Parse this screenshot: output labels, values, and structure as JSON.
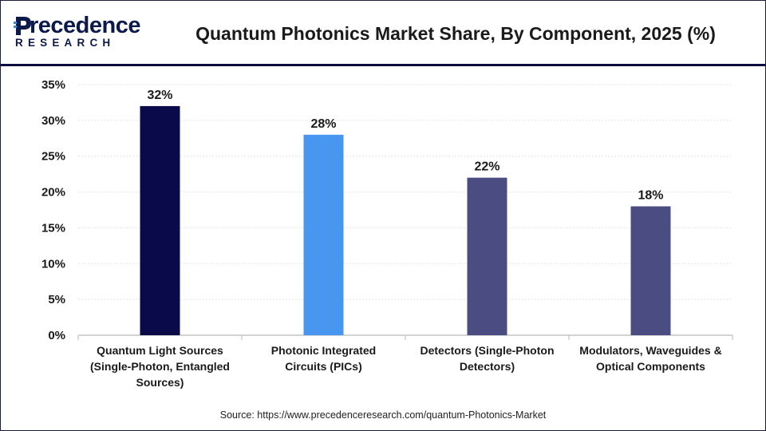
{
  "header": {
    "logo_word": "recedence",
    "logo_sub": "RESEARCH",
    "title": "Quantum Photonics Market Share, By Component, 2025 (%)"
  },
  "chart_data": {
    "type": "bar",
    "title": "Quantum Photonics Market Share, By Component, 2025 (%)",
    "categories": [
      [
        "Quantum Light Sources",
        "(Single-Photon, Entangled",
        "Sources)"
      ],
      [
        "Photonic Integrated",
        "Circuits (PICs)"
      ],
      [
        "Detectors (Single-Photon",
        "Detectors)"
      ],
      [
        "Modulators, Waveguides &",
        "Optical Components"
      ]
    ],
    "values": [
      32,
      28,
      22,
      18
    ],
    "data_labels": [
      "32%",
      "28%",
      "22%",
      "18%"
    ],
    "colors": [
      "#0a0a4a",
      "#4796f0",
      "#4b4d82",
      "#4b4d82"
    ],
    "ylim": [
      0,
      35
    ],
    "yticks": [
      0,
      5,
      10,
      15,
      20,
      25,
      30,
      35
    ],
    "ytick_labels": [
      "0%",
      "5%",
      "10%",
      "15%",
      "20%",
      "25%",
      "30%",
      "35%"
    ],
    "grid": true,
    "xlabel": "",
    "ylabel": ""
  },
  "footer": {
    "source": "Source: https://www.precedenceresearch.com/quantum-Photonics-Market"
  }
}
